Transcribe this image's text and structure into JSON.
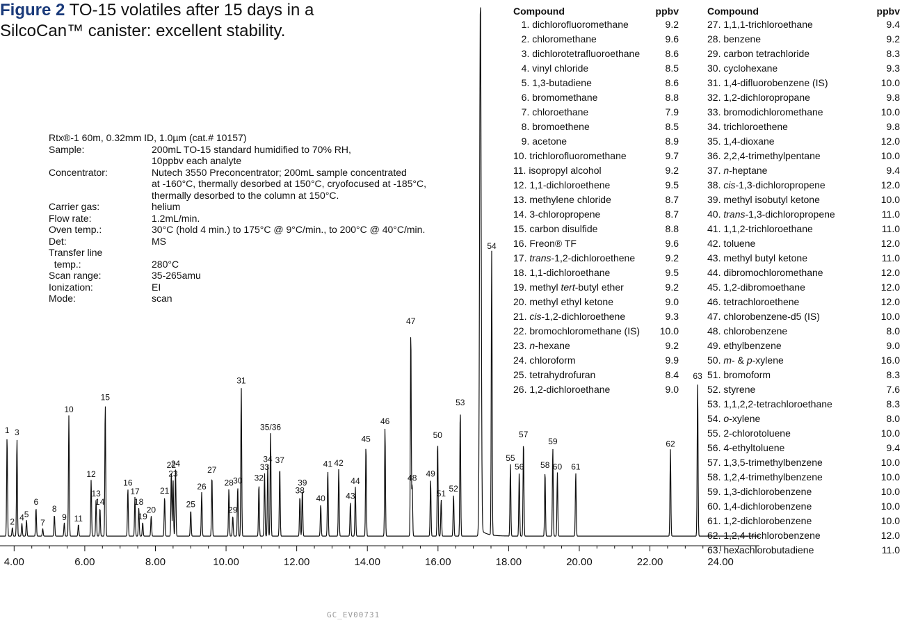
{
  "figure": {
    "label": "Figure 2",
    "caption_line1": "TO-15 volatiles after 15 days in a",
    "caption_line2": "SilcoCan™ canister: excellent stability."
  },
  "conditions": {
    "column": "Rtx®-1 60m, 0.32mm ID, 1.0µm (cat.# 10157)",
    "rows": [
      {
        "label": "Sample:",
        "value": "200mL TO-15 standard humidified to 70% RH,"
      },
      {
        "label": "",
        "value": "10ppbv each analyte"
      },
      {
        "label": "Concentrator:",
        "value": "Nutech 3550 Preconcentrator; 200mL sample concentrated"
      },
      {
        "label": "",
        "value": "at -160°C, thermally desorbed at 150°C, cryofocused at -185°C,"
      },
      {
        "label": "",
        "value": "thermally desorbed to the column at 150°C."
      },
      {
        "label": "Carrier gas:",
        "value": "helium"
      },
      {
        "label": "Flow rate:",
        "value": "1.2mL/min."
      },
      {
        "label": "Oven temp.:",
        "value": "30°C (hold 4 min.) to 175°C @ 9°C/min., to 200°C @ 40°C/min."
      },
      {
        "label": "Det:",
        "value": "MS"
      },
      {
        "label": "Transfer line",
        "value": ""
      },
      {
        "label": "  temp.:",
        "value": "280°C"
      },
      {
        "label": "Scan range:",
        "value": "35-265amu"
      },
      {
        "label": "Ionization:",
        "value": "EI"
      },
      {
        "label": "Mode:",
        "value": "scan"
      }
    ]
  },
  "table_header": {
    "compound": "Compound",
    "ppbv": "ppbv"
  },
  "compounds": [
    {
      "num": 1,
      "name": "dichlorofluoromethane",
      "ppbv": "9.2"
    },
    {
      "num": 2,
      "name": "chloromethane",
      "ppbv": "9.6"
    },
    {
      "num": 3,
      "name": "dichlorotetrafluoroethane",
      "ppbv": "8.6"
    },
    {
      "num": 4,
      "name": "vinyl chloride",
      "ppbv": "8.5"
    },
    {
      "num": 5,
      "name": "1,3-butadiene",
      "ppbv": "8.6"
    },
    {
      "num": 6,
      "name": "bromomethane",
      "ppbv": "8.8"
    },
    {
      "num": 7,
      "name": "chloroethane",
      "ppbv": "7.9"
    },
    {
      "num": 8,
      "name": "bromoethene",
      "ppbv": "8.5"
    },
    {
      "num": 9,
      "name": "acetone",
      "ppbv": "8.9"
    },
    {
      "num": 10,
      "name": "trichlorofluoromethane",
      "ppbv": "9.7"
    },
    {
      "num": 11,
      "name": "isopropyl alcohol",
      "ppbv": "9.2"
    },
    {
      "num": 12,
      "name": "1,1-dichloroethene",
      "ppbv": "9.5"
    },
    {
      "num": 13,
      "name": "methylene chloride",
      "ppbv": "8.7"
    },
    {
      "num": 14,
      "name": "3-chloropropene",
      "ppbv": "8.7"
    },
    {
      "num": 15,
      "name": "carbon disulfide",
      "ppbv": "8.8"
    },
    {
      "num": 16,
      "name": "Freon® TF",
      "ppbv": "9.6"
    },
    {
      "num": 17,
      "name": "trans-1,2-dichloroethene",
      "ppbv": "9.2"
    },
    {
      "num": 18,
      "name": "1,1-dichloroethane",
      "ppbv": "9.5"
    },
    {
      "num": 19,
      "name": "methyl tert-butyl ether",
      "ppbv": "9.2"
    },
    {
      "num": 20,
      "name": "methyl ethyl ketone",
      "ppbv": "9.0"
    },
    {
      "num": 21,
      "name": "cis-1,2-dichloroethene",
      "ppbv": "9.3"
    },
    {
      "num": 22,
      "name": "bromochloromethane (IS)",
      "ppbv": "10.0"
    },
    {
      "num": 23,
      "name": "n-hexane",
      "ppbv": "9.2"
    },
    {
      "num": 24,
      "name": "chloroform",
      "ppbv": "9.9"
    },
    {
      "num": 25,
      "name": "tetrahydrofuran",
      "ppbv": "8.4"
    },
    {
      "num": 26,
      "name": "1,2-dichloroethane",
      "ppbv": "9.0"
    },
    {
      "num": 27,
      "name": "1,1,1-trichloroethane",
      "ppbv": "9.4"
    },
    {
      "num": 28,
      "name": "benzene",
      "ppbv": "9.2"
    },
    {
      "num": 29,
      "name": "carbon tetrachloride",
      "ppbv": "8.3"
    },
    {
      "num": 30,
      "name": "cyclohexane",
      "ppbv": "9.3"
    },
    {
      "num": 31,
      "name": "1,4-difluorobenzene (IS)",
      "ppbv": "10.0"
    },
    {
      "num": 32,
      "name": "1,2-dichloropropane",
      "ppbv": "9.8"
    },
    {
      "num": 33,
      "name": "bromodichloromethane",
      "ppbv": "10.0"
    },
    {
      "num": 34,
      "name": "trichloroethene",
      "ppbv": "9.8"
    },
    {
      "num": 35,
      "name": "1,4-dioxane",
      "ppbv": "12.0"
    },
    {
      "num": 36,
      "name": "2,2,4-trimethylpentane",
      "ppbv": "10.0"
    },
    {
      "num": 37,
      "name": "n-heptane",
      "ppbv": "9.4"
    },
    {
      "num": 38,
      "name": "cis-1,3-dichloropropene",
      "ppbv": "12.0"
    },
    {
      "num": 39,
      "name": "methyl isobutyl ketone",
      "ppbv": "10.0"
    },
    {
      "num": 40,
      "name": "trans-1,3-dichloropropene",
      "ppbv": "11.0"
    },
    {
      "num": 41,
      "name": "1,1,2-trichloroethane",
      "ppbv": "11.0"
    },
    {
      "num": 42,
      "name": "toluene",
      "ppbv": "12.0"
    },
    {
      "num": 43,
      "name": "methyl butyl ketone",
      "ppbv": "11.0"
    },
    {
      "num": 44,
      "name": "dibromochloromethane",
      "ppbv": "12.0"
    },
    {
      "num": 45,
      "name": "1,2-dibromoethane",
      "ppbv": "12.0"
    },
    {
      "num": 46,
      "name": "tetrachloroethene",
      "ppbv": "12.0"
    },
    {
      "num": 47,
      "name": "chlorobenzene-d5 (IS)",
      "ppbv": "10.0"
    },
    {
      "num": 48,
      "name": "chlorobenzene",
      "ppbv": "8.0"
    },
    {
      "num": 49,
      "name": "ethylbenzene",
      "ppbv": "9.0"
    },
    {
      "num": 50,
      "name": "m- & p-xylene",
      "ppbv": "16.0"
    },
    {
      "num": 51,
      "name": "bromoform",
      "ppbv": "8.3"
    },
    {
      "num": 52,
      "name": "styrene",
      "ppbv": "7.6"
    },
    {
      "num": 53,
      "name": "1,1,2,2-tetrachloroethane",
      "ppbv": "8.3"
    },
    {
      "num": 54,
      "name": "o-xylene",
      "ppbv": "8.0"
    },
    {
      "num": 55,
      "name": "2-chlorotoluene",
      "ppbv": "10.0"
    },
    {
      "num": 56,
      "name": "4-ethyltoluene",
      "ppbv": "9.4"
    },
    {
      "num": 57,
      "name": "1,3,5-trimethylbenzene",
      "ppbv": "10.0"
    },
    {
      "num": 58,
      "name": "1,2,4-trimethylbenzene",
      "ppbv": "10.0"
    },
    {
      "num": 59,
      "name": "1,3-dichlorobenzene",
      "ppbv": "10.0"
    },
    {
      "num": 60,
      "name": "1,4-dichlorobenzene",
      "ppbv": "10.0"
    },
    {
      "num": 61,
      "name": "1,2-dichlorobenzene",
      "ppbv": "10.0"
    },
    {
      "num": 62,
      "name": "1,2,4-trichlorobenzene",
      "ppbv": "12.0"
    },
    {
      "num": 63,
      "name": "hexachlorobutadiene",
      "ppbv": "11.0"
    }
  ],
  "footer_code": "GC_EV00731",
  "chart_data": {
    "type": "line",
    "title": "",
    "xlabel": "",
    "ylabel": "",
    "xlim": [
      3.6,
      25.1
    ],
    "ylim": [
      0,
      100
    ],
    "x_ticks": [
      "4.00",
      "6.00",
      "8.00",
      "10.00",
      "12.00",
      "14.00",
      "16.00",
      "18.00",
      "20.00",
      "22.00",
      "24.00"
    ],
    "x_tick_values": [
      4,
      6,
      8,
      10,
      12,
      14,
      16,
      18,
      20,
      22,
      24
    ],
    "grid": false,
    "peaks": [
      {
        "label": "1",
        "rt": 3.8,
        "height": 18.7
      },
      {
        "label": "2",
        "rt": 3.95,
        "height": 1.6
      },
      {
        "label": "3",
        "rt": 4.08,
        "height": 18.3
      },
      {
        "label": "4",
        "rt": 4.22,
        "height": 2.4
      },
      {
        "label": "5",
        "rt": 4.35,
        "height": 3.0
      },
      {
        "label": "6",
        "rt": 4.62,
        "height": 5.3
      },
      {
        "label": "7",
        "rt": 4.81,
        "height": 1.4
      },
      {
        "label": "8",
        "rt": 5.14,
        "height": 4.0
      },
      {
        "label": "9",
        "rt": 5.42,
        "height": 2.5
      },
      {
        "label": "10",
        "rt": 5.55,
        "height": 22.6
      },
      {
        "label": "11",
        "rt": 5.82,
        "height": 2.2
      },
      {
        "label": "12",
        "rt": 6.18,
        "height": 10.5
      },
      {
        "label": "13",
        "rt": 6.32,
        "height": 6.9
      },
      {
        "label": "14",
        "rt": 6.43,
        "height": 5.3
      },
      {
        "label": "15",
        "rt": 6.58,
        "height": 24.9
      },
      {
        "label": "16",
        "rt": 7.22,
        "height": 8.9
      },
      {
        "label": "17",
        "rt": 7.42,
        "height": 7.3
      },
      {
        "label": "18",
        "rt": 7.53,
        "height": 5.3
      },
      {
        "label": "19",
        "rt": 7.64,
        "height": 2.6
      },
      {
        "label": "20",
        "rt": 7.88,
        "height": 3.8
      },
      {
        "label": "21",
        "rt": 8.26,
        "height": 7.4
      },
      {
        "label": "22",
        "rt": 8.45,
        "height": 12.2
      },
      {
        "label": "23",
        "rt": 8.5,
        "height": 10.6
      },
      {
        "label": "24",
        "rt": 8.57,
        "height": 12.5
      },
      {
        "label": "25",
        "rt": 9.0,
        "height": 4.9
      },
      {
        "label": "26",
        "rt": 9.31,
        "height": 8.2
      },
      {
        "label": "27",
        "rt": 9.6,
        "height": 11.3
      },
      {
        "label": "28",
        "rt": 10.08,
        "height": 8.9
      },
      {
        "label": "29",
        "rt": 10.19,
        "height": 3.8
      },
      {
        "label": "30",
        "rt": 10.33,
        "height": 9.3
      },
      {
        "label": "31",
        "rt": 10.43,
        "height": 28.0
      },
      {
        "label": "32",
        "rt": 10.93,
        "height": 9.8
      },
      {
        "label": "33",
        "rt": 11.09,
        "height": 11.8
      },
      {
        "label": "34",
        "rt": 11.18,
        "height": 13.3
      },
      {
        "label": "35/36",
        "rt": 11.26,
        "height": 19.3
      },
      {
        "label": "37",
        "rt": 11.52,
        "height": 13.1
      },
      {
        "label": "38",
        "rt": 12.09,
        "height": 7.5
      },
      {
        "label": "39",
        "rt": 12.16,
        "height": 8.9
      },
      {
        "label": "40",
        "rt": 12.68,
        "height": 6.0
      },
      {
        "label": "41",
        "rt": 12.88,
        "height": 12.4
      },
      {
        "label": "42",
        "rt": 13.19,
        "height": 12.6
      },
      {
        "label": "43",
        "rt": 13.52,
        "height": 6.4
      },
      {
        "label": "44",
        "rt": 13.66,
        "height": 9.2
      },
      {
        "label": "45",
        "rt": 13.96,
        "height": 17.1
      },
      {
        "label": "46",
        "rt": 14.5,
        "height": 20.4
      },
      {
        "label": "47",
        "rt": 15.23,
        "height": 39.1
      },
      {
        "label": "48",
        "rt": 15.27,
        "height": 9.8
      },
      {
        "label": "49",
        "rt": 15.79,
        "height": 10.6
      },
      {
        "label": "50",
        "rt": 15.99,
        "height": 17.8
      },
      {
        "label": "51",
        "rt": 16.09,
        "height": 6.9
      },
      {
        "label": "52",
        "rt": 16.44,
        "height": 7.8
      },
      {
        "label": "53",
        "rt": 16.63,
        "height": 23.9
      },
      {
        "label": "54",
        "rt": 17.2,
        "height": 100.0
      },
      {
        "label": "54",
        "rt": 17.52,
        "height": 53.1
      },
      {
        "label": "55",
        "rt": 18.05,
        "height": 13.5
      },
      {
        "label": "56",
        "rt": 18.3,
        "height": 11.9
      },
      {
        "label": "57",
        "rt": 18.42,
        "height": 17.9
      },
      {
        "label": "58",
        "rt": 19.03,
        "height": 12.2
      },
      {
        "label": "59",
        "rt": 19.25,
        "height": 16.6
      },
      {
        "label": "60",
        "rt": 19.38,
        "height": 11.9
      },
      {
        "label": "61",
        "rt": 19.9,
        "height": 11.9
      },
      {
        "label": "62",
        "rt": 22.58,
        "height": 16.2
      },
      {
        "label": "63",
        "rt": 23.35,
        "height": 28.8
      }
    ]
  }
}
